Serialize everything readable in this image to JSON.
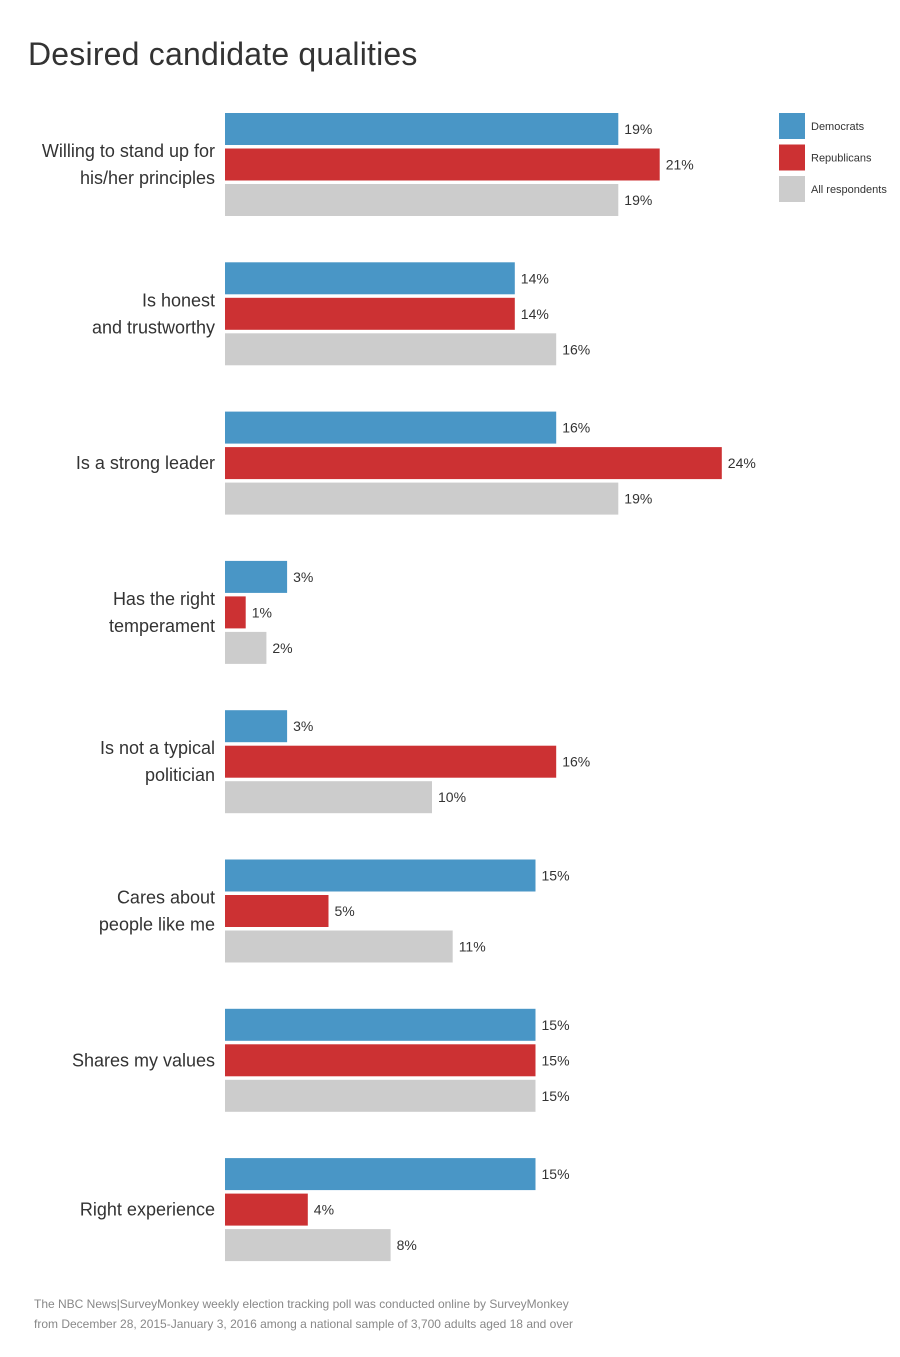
{
  "chart_data": {
    "type": "bar",
    "orientation": "horizontal",
    "title": "Desired candidate qualities",
    "xlabel": "",
    "ylabel": "",
    "grid": false,
    "legend_position": "top-right",
    "value_suffix": "%",
    "xlim": [
      0,
      25
    ],
    "categories": [
      [
        "Willing to stand up for",
        "his/her principles"
      ],
      [
        "Is honest",
        "and trustworthy"
      ],
      [
        "Is a strong leader"
      ],
      [
        "Has the right",
        "temperament"
      ],
      [
        "Is not a typical",
        "politician"
      ],
      [
        "Cares about",
        "people like me"
      ],
      [
        "Shares my values"
      ],
      [
        "Right experience"
      ]
    ],
    "series": [
      {
        "name": "Democrats",
        "color": "#4996c6",
        "values": [
          19,
          14,
          16,
          3,
          3,
          15,
          15,
          15
        ]
      },
      {
        "name": "Republicans",
        "color": "#cc3133",
        "values": [
          21,
          14,
          24,
          1,
          16,
          5,
          15,
          4
        ]
      },
      {
        "name": "All respondents",
        "color": "#cccccc",
        "values": [
          19,
          16,
          19,
          2,
          10,
          11,
          15,
          8
        ]
      }
    ]
  },
  "footnote": {
    "line1": "The NBC News|SurveyMonkey weekly election tracking poll was conducted online by SurveyMonkey",
    "line2": "from December 28, 2015-January 3, 2016 among a national sample of 3,700 adults aged 18 and over"
  }
}
